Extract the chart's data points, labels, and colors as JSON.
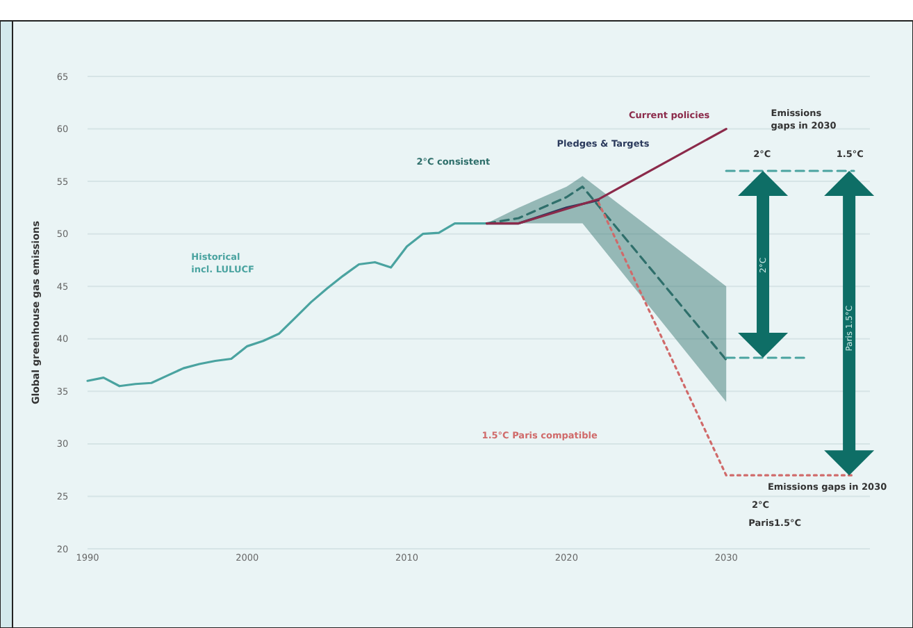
{
  "chart_data": {
    "type": "line",
    "ylabel": "Global greenhouse gas emissions",
    "xlim": [
      1990,
      2039
    ],
    "xticks": [
      1990,
      2000,
      2010,
      2020,
      2030
    ],
    "ylim": [
      20,
      65
    ],
    "yticks": [
      20,
      25,
      30,
      35,
      40,
      45,
      50,
      55,
      60,
      65
    ],
    "grid": "y",
    "series": [
      {
        "name": "Historical\nincl. LULUCF",
        "color": "#4aa3a0",
        "x": [
          1990,
          1991,
          1992,
          1993,
          1994,
          1995,
          1996,
          1997,
          1998,
          1999,
          2000,
          2001,
          2002,
          2003,
          2004,
          2005,
          2006,
          2007,
          2008,
          2009,
          2010,
          2011,
          2012,
          2013,
          2014,
          2015
        ],
        "values": [
          36,
          36.3,
          35.5,
          35.7,
          35.8,
          36.5,
          37.2,
          37.6,
          37.9,
          38.1,
          39.3,
          39.8,
          40.5,
          42,
          43.5,
          44.8,
          46,
          47.1,
          47.3,
          46.8,
          48.8,
          50,
          50.1,
          51,
          51,
          51
        ]
      },
      {
        "name": "2°C consistent",
        "color": "#2f6f6b",
        "line_style": "dashed",
        "x": [
          2015,
          2017,
          2020,
          2021,
          2030
        ],
        "values": [
          51,
          51.5,
          53.5,
          54.5,
          38
        ],
        "lower": [
          51,
          51,
          51,
          51,
          34
        ],
        "upper": [
          51,
          52.5,
          54.5,
          55.5,
          45
        ]
      },
      {
        "name": "Pledges & Targets",
        "color": "#2b3a5c",
        "x": [
          2015,
          2017,
          2020,
          2022
        ],
        "values": [
          51,
          51,
          52.5,
          53.2
        ]
      },
      {
        "name": "Current policies",
        "color": "#8b2a4a",
        "x": [
          2015,
          2017,
          2022,
          2030
        ],
        "values": [
          51,
          51,
          53.3,
          60
        ]
      },
      {
        "name": "1.5°C Paris compatible",
        "color": "#d06a6a",
        "line_style": "dotted",
        "x": [
          2022,
          2030,
          2038
        ],
        "values": [
          53,
          27,
          27
        ]
      },
      {
        "color": "#4aa3a0",
        "line_style": "dashed",
        "x": [
          2030,
          2038
        ],
        "values": [
          56,
          56
        ]
      },
      {
        "color": "#4aa3a0",
        "line_style": "dashed",
        "x": [
          2030,
          2035
        ],
        "values": [
          38.2,
          38.2
        ]
      }
    ],
    "annotations": [
      "Emissions\ngaps in 2030",
      "2°C",
      "1.5°C",
      "2°C",
      "Paris 1.5°C",
      "Emissions gaps in 2030",
      "2°C",
      "Paris1.5°C"
    ]
  }
}
